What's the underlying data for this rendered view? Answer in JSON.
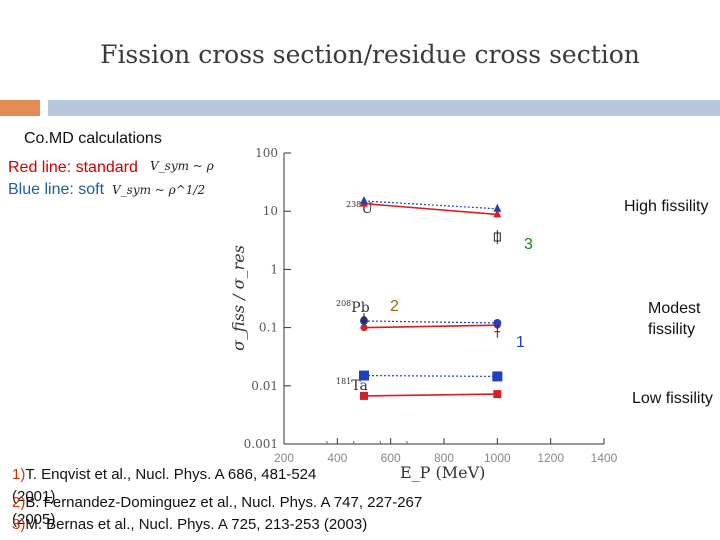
{
  "slide": {
    "title": "Fission cross section/residue cross section",
    "accent_orange": "#e28b55",
    "accent_blue": "#b8c7dc"
  },
  "notes": {
    "comd": "Co.MD calculations",
    "red_line": "Red line: standard",
    "blue_line": "Blue line: soft",
    "red_formula": "V_sym ~ ρ",
    "blue_formula": "V_sym ~ ρ^1/2",
    "high": "High fissility",
    "modest_1": "Modest",
    "modest_2": "fissility",
    "low": "Low fissility",
    "marker_3": "3",
    "marker_2": "2",
    "marker_1": "1"
  },
  "references": [
    {
      "num": "1)",
      "text": "T. Enqvist et al., Nucl. Phys. A  686, 481-524"
    },
    {
      "num": "",
      "text": "(2001)"
    },
    {
      "num": "2)",
      "text": "B. Fernandez-Dominguez et al., Nucl. Phys. A 747, 227-267"
    },
    {
      "num": "",
      "text": "(2005)"
    },
    {
      "num": "3)",
      "text": "M. Bernas et al., Nucl. Phys. A 725, 213-253 (2003)"
    }
  ],
  "chart_data": {
    "type": "scatter",
    "ylabel": "σ_fiss / σ_res",
    "xlabel": "E_P (MeV)",
    "xlim": [
      200,
      1400
    ],
    "ylim": [
      0.001,
      100
    ],
    "yscale": "log",
    "xticks": [
      "200",
      "400",
      "600",
      "800",
      "1000",
      "1200",
      "1400"
    ],
    "yticks": [
      "0.001",
      "0.01",
      "0.1",
      "1",
      "10",
      "100"
    ],
    "nuclei": [
      "238U",
      "208Pb",
      "181Ta"
    ],
    "series": [
      {
        "name": "Red line: standard",
        "color": "#d42020",
        "nucleus": "238U",
        "x": [
          500,
          1000
        ],
        "y": [
          13.5,
          8.8
        ]
      },
      {
        "name": "Blue line: soft",
        "color": "#2040c0",
        "nucleus": "238U",
        "x": [
          500,
          1000
        ],
        "y": [
          15.0,
          11.0
        ]
      },
      {
        "name": "Red line: standard",
        "color": "#d42020",
        "nucleus": "208Pb",
        "x": [
          500,
          1000
        ],
        "y": [
          0.1,
          0.11
        ]
      },
      {
        "name": "Blue line: soft",
        "color": "#2040c0",
        "nucleus": "208Pb",
        "x": [
          500,
          1000
        ],
        "y": [
          0.13,
          0.12
        ]
      },
      {
        "name": "Red line: standard",
        "color": "#d42020",
        "nucleus": "181Ta",
        "x": [
          500,
          1000
        ],
        "y": [
          0.0067,
          0.0072
        ]
      },
      {
        "name": "Blue line: soft",
        "color": "#2040c0",
        "nucleus": "181Ta",
        "x": [
          500,
          1000
        ],
        "y": [
          0.015,
          0.0145
        ]
      }
    ],
    "experimental": [
      {
        "ref": "3",
        "x": 1000,
        "y": 3.6
      },
      {
        "ref": "2",
        "x": 500,
        "y": 0.14
      },
      {
        "ref": "1",
        "x": 1000,
        "y": 0.085
      }
    ]
  }
}
